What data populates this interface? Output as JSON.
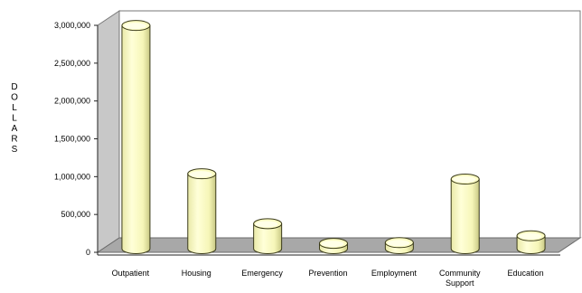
{
  "chart_data": {
    "type": "bar",
    "style": "3d-cylinder",
    "title": "",
    "xlabel": "",
    "ylabel": "DOLLARS",
    "ylim": [
      0,
      3000000
    ],
    "yticks": [
      0,
      500000,
      1000000,
      1500000,
      2000000,
      2500000,
      3000000
    ],
    "ytick_labels": [
      "0",
      "500,000",
      "1,000,000",
      "1,500,000",
      "2,000,000",
      "2,500,000",
      "3,000,000"
    ],
    "categories": [
      [
        "Outpatient"
      ],
      [
        "Housing"
      ],
      [
        "Emergency"
      ],
      [
        "Prevention"
      ],
      [
        "Employment"
      ],
      [
        "Community",
        "Support"
      ],
      [
        "Education"
      ]
    ],
    "values": [
      2950000,
      990000,
      330000,
      70000,
      80000,
      920000,
      170000
    ],
    "grid": false,
    "legend": "none",
    "colors": {
      "bar_fill": "#fdfdc4",
      "bar_shade": "#d8d890",
      "bar_stroke": "#3a3a1a",
      "wall": "#ffffff",
      "floor": "#a8a8a8",
      "wall_stroke": "#777777",
      "axis": "#222222"
    }
  }
}
